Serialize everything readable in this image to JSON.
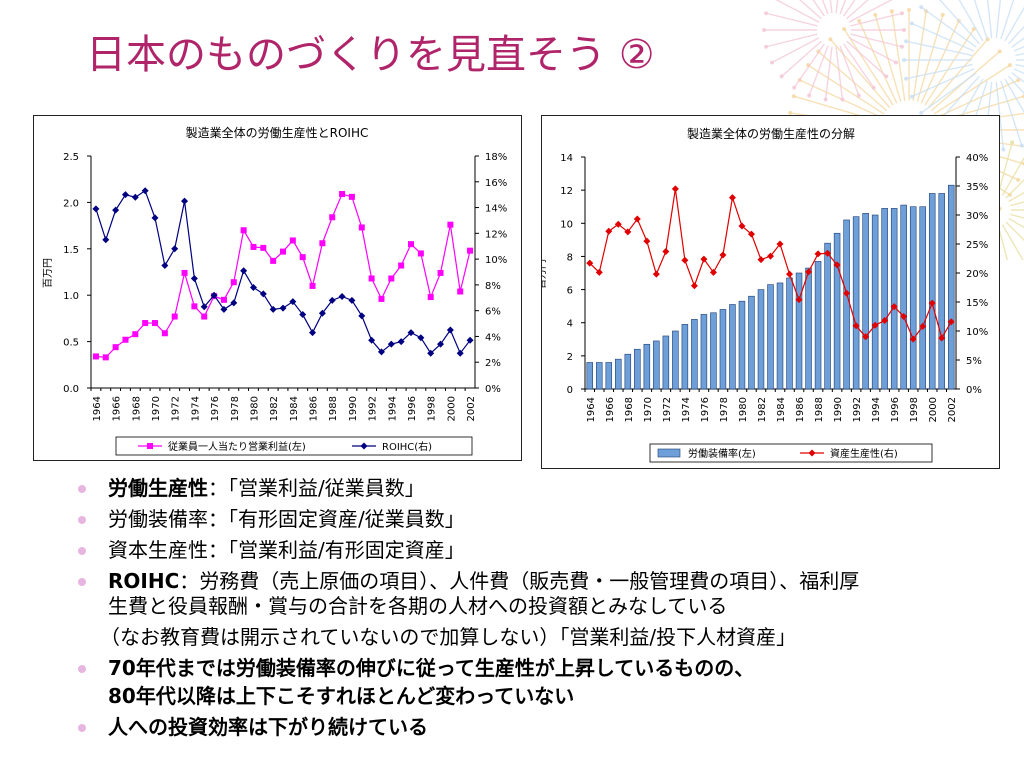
{
  "slide_title": "日本のものづくりを見直そう ②",
  "chart_data": [
    {
      "type": "line",
      "title": "製造業全体の労働生産性とROIHC",
      "ylabel": "百万円",
      "ylim": [
        0,
        2.5
      ],
      "y_ticks": [
        "0.0",
        "0.5",
        "1.0",
        "1.5",
        "2.0",
        "2.5"
      ],
      "y2lim": [
        0,
        18
      ],
      "y2_ticks": [
        "0%",
        "2%",
        "4%",
        "6%",
        "8%",
        "10%",
        "12%",
        "14%",
        "16%",
        "18%"
      ],
      "x": [
        1964,
        1965,
        1966,
        1967,
        1968,
        1969,
        1970,
        1971,
        1972,
        1973,
        1974,
        1975,
        1976,
        1977,
        1978,
        1979,
        1980,
        1981,
        1982,
        1983,
        1984,
        1985,
        1986,
        1987,
        1988,
        1989,
        1990,
        1991,
        1992,
        1993,
        1994,
        1995,
        1996,
        1997,
        1998,
        1999,
        2000,
        2001,
        2002
      ],
      "x_tick_labels": [
        "1964",
        "1966",
        "1968",
        "1970",
        "1972",
        "1974",
        "1976",
        "1978",
        "1980",
        "1982",
        "1984",
        "1986",
        "1988",
        "1990",
        "1992",
        "1994",
        "1996",
        "1998",
        "2000",
        "2002"
      ],
      "grid": false,
      "legend_position": "bottom",
      "series": [
        {
          "name": "従業員一人当たり営業利益(左)",
          "axis": "left",
          "color": "#ff00ff",
          "marker": "square",
          "values": [
            0.34,
            0.33,
            0.44,
            0.52,
            0.58,
            0.7,
            0.7,
            0.59,
            0.77,
            1.24,
            0.88,
            0.77,
            0.99,
            0.95,
            1.14,
            1.7,
            1.52,
            1.51,
            1.37,
            1.47,
            1.59,
            1.41,
            1.1,
            1.56,
            1.84,
            2.09,
            2.06,
            1.73,
            1.18,
            0.96,
            1.18,
            1.32,
            1.55,
            1.45,
            0.98,
            1.24,
            1.76,
            1.04,
            1.48
          ]
        },
        {
          "name": "ROIHC(右)",
          "axis": "right",
          "color": "#000080",
          "marker": "diamond",
          "values": [
            13.9,
            11.5,
            13.8,
            15.0,
            14.8,
            15.3,
            13.2,
            9.5,
            10.8,
            14.5,
            8.5,
            6.3,
            7.2,
            6.1,
            6.6,
            9.1,
            7.8,
            7.3,
            6.1,
            6.2,
            6.7,
            5.7,
            4.3,
            5.8,
            6.8,
            7.1,
            6.8,
            5.6,
            3.7,
            2.8,
            3.4,
            3.6,
            4.3,
            3.9,
            2.7,
            3.4,
            4.5,
            2.7,
            3.7
          ]
        }
      ]
    },
    {
      "type": "bar+line",
      "title": "製造業全体の労働生産性の分解",
      "ylabel": "百万円",
      "ylim": [
        0,
        14
      ],
      "y_ticks": [
        "0",
        "2",
        "4",
        "6",
        "8",
        "10",
        "12",
        "14"
      ],
      "y2lim": [
        0,
        40
      ],
      "y2_ticks": [
        "0%",
        "5%",
        "10%",
        "15%",
        "20%",
        "25%",
        "30%",
        "35%",
        "40%"
      ],
      "x": [
        1964,
        1965,
        1966,
        1967,
        1968,
        1969,
        1970,
        1971,
        1972,
        1973,
        1974,
        1975,
        1976,
        1977,
        1978,
        1979,
        1980,
        1981,
        1982,
        1983,
        1984,
        1985,
        1986,
        1987,
        1988,
        1989,
        1990,
        1991,
        1992,
        1993,
        1994,
        1995,
        1996,
        1997,
        1998,
        1999,
        2000,
        2001,
        2002
      ],
      "x_tick_labels": [
        "1964",
        "1966",
        "1968",
        "1970",
        "1972",
        "1974",
        "1976",
        "1978",
        "1980",
        "1982",
        "1984",
        "1986",
        "1988",
        "1990",
        "1992",
        "1994",
        "1996",
        "1998",
        "2000",
        "2002"
      ],
      "grid": false,
      "legend_position": "bottom",
      "series": [
        {
          "name": "労働装備率(左)",
          "axis": "left",
          "kind": "bar",
          "color": "#6e9fd8",
          "values": [
            1.6,
            1.6,
            1.6,
            1.8,
            2.1,
            2.4,
            2.7,
            2.9,
            3.2,
            3.5,
            3.9,
            4.2,
            4.5,
            4.6,
            4.8,
            5.1,
            5.3,
            5.6,
            6.0,
            6.3,
            6.4,
            6.7,
            7.0,
            7.3,
            7.7,
            8.8,
            9.4,
            10.2,
            10.4,
            10.6,
            10.5,
            10.9,
            10.9,
            11.1,
            11.0,
            11.0,
            11.8,
            11.8,
            12.3
          ]
        },
        {
          "name": "資産生産性(右)",
          "axis": "right",
          "kind": "line",
          "color": "#e00000",
          "marker": "diamond",
          "values": [
            21.7,
            20.1,
            27.2,
            28.4,
            27.1,
            29.3,
            25.5,
            19.8,
            23.7,
            34.5,
            22.2,
            17.8,
            22.4,
            20.1,
            23.1,
            33.0,
            28.1,
            26.7,
            22.3,
            22.9,
            25.0,
            19.8,
            15.4,
            20.2,
            23.3,
            23.4,
            21.4,
            16.5,
            10.9,
            9.0,
            11.0,
            11.8,
            14.2,
            12.5,
            8.6,
            10.8,
            14.8,
            8.8,
            11.6
          ]
        }
      ]
    }
  ],
  "bullets": [
    {
      "label": "労働生産性",
      "text": "：「営業利益/従業員数」"
    },
    {
      "label": "労働装備率",
      "text": "：「有形固定資産/従業員数」"
    },
    {
      "label": "資本生産性",
      "text": "：「営業利益/有形固定資産」"
    },
    {
      "label": "ROIHC",
      "text": "：労務費（売上原価の項目）、人件費（販売費・一般管理費の項目）、福利厚",
      "line2": "生費と役員報酬・賞与の合計を各期の人材への投資額とみなしている",
      "line3": "（なお教育費は開示されていないので加算しない）「営業利益/投下人材資産」"
    },
    {
      "text": "70年代までは労働装備率の伸びに従って生産性が上昇しているものの、",
      "line2": "80年代以降は上下こそすれほとんど変わっていない"
    },
    {
      "text": "人への投資効率は下がり続けている"
    }
  ],
  "colors": {
    "title": "#b0246a",
    "bullet": "#e7b6e0"
  }
}
